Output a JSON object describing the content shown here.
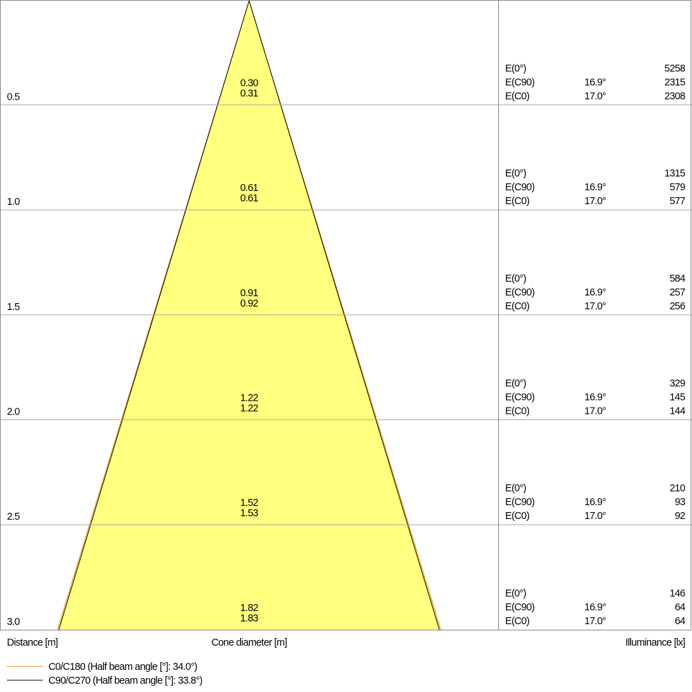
{
  "rows": [
    {
      "distance": "0.5",
      "cone": [
        "0.30",
        "0.31"
      ],
      "illuminance": [
        {
          "label": "E(0°)",
          "value": "5258"
        },
        {
          "label": "E(C90)",
          "angle": "16.9°",
          "value": "2315"
        },
        {
          "label": "E(C0)",
          "angle": "17.0°",
          "value": "2308"
        }
      ]
    },
    {
      "distance": "1.0",
      "cone": [
        "0.61",
        "0.61"
      ],
      "illuminance": [
        {
          "label": "E(0°)",
          "value": "1315"
        },
        {
          "label": "E(C90)",
          "angle": "16.9°",
          "value": "579"
        },
        {
          "label": "E(C0)",
          "angle": "17.0°",
          "value": "577"
        }
      ]
    },
    {
      "distance": "1.5",
      "cone": [
        "0.91",
        "0.92"
      ],
      "illuminance": [
        {
          "label": "E(0°)",
          "value": "584"
        },
        {
          "label": "E(C90)",
          "angle": "16.9°",
          "value": "257"
        },
        {
          "label": "E(C0)",
          "angle": "17.0°",
          "value": "256"
        }
      ]
    },
    {
      "distance": "2.0",
      "cone": [
        "1.22",
        "1.22"
      ],
      "illuminance": [
        {
          "label": "E(0°)",
          "value": "329"
        },
        {
          "label": "E(C90)",
          "angle": "16.9°",
          "value": "145"
        },
        {
          "label": "E(C0)",
          "angle": "17.0°",
          "value": "144"
        }
      ]
    },
    {
      "distance": "2.5",
      "cone": [
        "1.52",
        "1.53"
      ],
      "illuminance": [
        {
          "label": "E(0°)",
          "value": "210"
        },
        {
          "label": "E(C90)",
          "angle": "16.9°",
          "value": "93"
        },
        {
          "label": "E(C0)",
          "angle": "17.0°",
          "value": "92"
        }
      ]
    },
    {
      "distance": "3.0",
      "cone": [
        "1.82",
        "1.83"
      ],
      "illuminance": [
        {
          "label": "E(0°)",
          "value": "146"
        },
        {
          "label": "E(C90)",
          "angle": "16.9°",
          "value": "64"
        },
        {
          "label": "E(C0)",
          "angle": "17.0°",
          "value": "64"
        }
      ]
    }
  ],
  "footer": {
    "distance": "Distance [m]",
    "cone": "Cone diameter [m]",
    "illuminance": "Illuminance [lx]"
  },
  "legend": [
    "C0/C180 (Half beam angle [°]: 34.0°)",
    "C90/C270 (Half beam angle [°]: 33.8°)"
  ]
}
